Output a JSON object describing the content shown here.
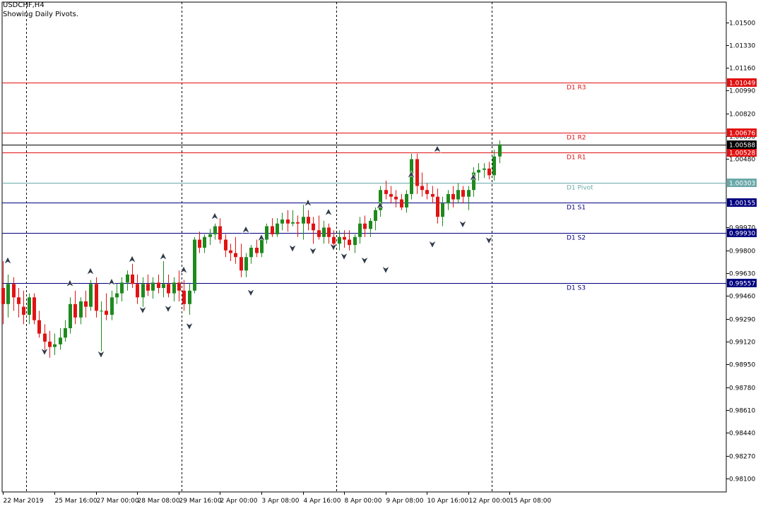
{
  "header": {
    "symbol_timeframe": "USDCHF,H4",
    "indicator_label": "Showing Daily Pivots."
  },
  "colors": {
    "bull": "#1e8a1e",
    "bear": "#e01414",
    "grid": "#000000",
    "axis": "#000000",
    "arrow_fill": "#2f3a4a",
    "resistance": "#e01010",
    "pivot": "#6aa8a8",
    "support": "#00007f",
    "current_price_bg": "#000000"
  },
  "chart_data": {
    "type": "candlestick",
    "symbol": "USDCHF",
    "timeframe": "H4",
    "y_range": [
      0.98,
      1.0165
    ],
    "y_ticks": [
      "1.01500",
      "1.01330",
      "1.01160",
      "1.00990",
      "1.00820",
      "1.00650",
      "1.00480",
      "0.99970",
      "0.99800",
      "0.99630",
      "0.99460",
      "0.99290",
      "0.99120",
      "0.98950",
      "0.98780",
      "0.98610",
      "0.98440",
      "0.98270",
      "0.98100"
    ],
    "x_ticks": [
      {
        "label": "22 Mar 2019",
        "index": 0
      },
      {
        "label": "25 Mar 16:00",
        "index": 10
      },
      {
        "label": "27 Mar 00:00",
        "index": 18
      },
      {
        "label": "28 Mar 08:00",
        "index": 26
      },
      {
        "label": "29 Mar 16:00",
        "index": 34
      },
      {
        "label": "2 Apr 00:00",
        "index": 42
      },
      {
        "label": "3 Apr 08:00",
        "index": 50
      },
      {
        "label": "4 Apr 16:00",
        "index": 58
      },
      {
        "label": "8 Apr 00:00",
        "index": 66
      },
      {
        "label": "9 Apr 08:00",
        "index": 74
      },
      {
        "label": "10 Apr 16:00",
        "index": 82
      },
      {
        "label": "12 Apr 00:00",
        "index": 90
      },
      {
        "label": "15 Apr 08:00",
        "index": 98
      }
    ],
    "day_separators_index": [
      4.5,
      34.5,
      64.5,
      94.5
    ],
    "pivot_levels": [
      {
        "name": "D1 R3",
        "value": 1.01049,
        "price_label": "1.01049",
        "role": "resistance"
      },
      {
        "name": "D1 R2",
        "value": 1.00676,
        "price_label": "1.00676",
        "role": "resistance"
      },
      {
        "name": "D1 R1",
        "value": 1.00528,
        "price_label": "1.00528",
        "role": "resistance"
      },
      {
        "name": "D1 Pivot",
        "value": 1.00303,
        "price_label": "1.00303",
        "role": "pivot"
      },
      {
        "name": "D1 S1",
        "value": 1.00155,
        "price_label": "1.00155",
        "role": "support"
      },
      {
        "name": "D1 S2",
        "value": 0.9993,
        "price_label": "0.99930",
        "role": "support"
      },
      {
        "name": "D1 S3",
        "value": 0.99557,
        "price_label": "0.99557",
        "role": "support"
      }
    ],
    "current_price": {
      "value": 1.00588,
      "label": "1.00588"
    },
    "candles": [
      [
        0.9952,
        0.9972,
        0.9925,
        0.994
      ],
      [
        0.994,
        0.9962,
        0.993,
        0.9955
      ],
      [
        0.9955,
        0.996,
        0.9935,
        0.9945
      ],
      [
        0.9945,
        0.9952,
        0.993,
        0.994
      ],
      [
        0.9938,
        0.995,
        0.9925,
        0.9932
      ],
      [
        0.9932,
        0.9948,
        0.9925,
        0.9945
      ],
      [
        0.9945,
        0.9948,
        0.9925,
        0.9928
      ],
      [
        0.9928,
        0.9935,
        0.9915,
        0.9918
      ],
      [
        0.9918,
        0.9925,
        0.9905,
        0.9912
      ],
      [
        0.9912,
        0.992,
        0.99,
        0.9908
      ],
      [
        0.9908,
        0.9918,
        0.9902,
        0.991
      ],
      [
        0.991,
        0.9922,
        0.9906,
        0.9915
      ],
      [
        0.9915,
        0.9928,
        0.9912,
        0.9922
      ],
      [
        0.9922,
        0.9945,
        0.9918,
        0.994
      ],
      [
        0.994,
        0.995,
        0.9925,
        0.993
      ],
      [
        0.993,
        0.9945,
        0.9925,
        0.9942
      ],
      [
        0.9942,
        0.995,
        0.993,
        0.9938
      ],
      [
        0.9938,
        0.9958,
        0.9935,
        0.9955
      ],
      [
        0.9955,
        0.996,
        0.993,
        0.9935
      ],
      [
        0.9935,
        0.9942,
        0.9905,
        0.9935
      ],
      [
        0.9935,
        0.9948,
        0.9928,
        0.9932
      ],
      [
        0.9932,
        0.995,
        0.9928,
        0.9945
      ],
      [
        0.9945,
        0.9955,
        0.994,
        0.9948
      ],
      [
        0.9948,
        0.996,
        0.9942,
        0.9956
      ],
      [
        0.9956,
        0.9965,
        0.995,
        0.9962
      ],
      [
        0.9962,
        0.997,
        0.9952,
        0.9955
      ],
      [
        0.9955,
        0.9962,
        0.994,
        0.9945
      ],
      [
        0.9945,
        0.996,
        0.9938,
        0.9955
      ],
      [
        0.9955,
        0.9962,
        0.9946,
        0.995
      ],
      [
        0.995,
        0.996,
        0.9944,
        0.9956
      ],
      [
        0.9956,
        0.9962,
        0.9948,
        0.9952
      ],
      [
        0.9952,
        0.9972,
        0.9945,
        0.9955
      ],
      [
        0.9955,
        0.9962,
        0.9945,
        0.9948
      ],
      [
        0.9948,
        0.996,
        0.9942,
        0.9956
      ],
      [
        0.9956,
        0.9965,
        0.9942,
        0.995
      ],
      [
        0.995,
        0.9958,
        0.9935,
        0.994
      ],
      [
        0.994,
        0.9955,
        0.9932,
        0.995
      ],
      [
        0.995,
        0.999,
        0.9948,
        0.9988
      ],
      [
        0.9988,
        0.9994,
        0.9978,
        0.9982
      ],
      [
        0.9982,
        0.9992,
        0.9978,
        0.999
      ],
      [
        0.999,
        0.9996,
        0.9984,
        0.9992
      ],
      [
        0.9992,
        1.0,
        0.9988,
        0.9998
      ],
      [
        0.9998,
        1.0004,
        0.9985,
        0.9988
      ],
      [
        0.9988,
        0.9992,
        0.9975,
        0.998
      ],
      [
        0.998,
        0.9985,
        0.9972,
        0.9978
      ],
      [
        0.9978,
        0.999,
        0.997,
        0.9975
      ],
      [
        0.9975,
        0.9985,
        0.996,
        0.9965
      ],
      [
        0.9965,
        0.9978,
        0.996,
        0.9975
      ],
      [
        0.9975,
        0.9984,
        0.997,
        0.9982
      ],
      [
        0.9982,
        0.9988,
        0.9975,
        0.9978
      ],
      [
        0.9978,
        0.999,
        0.9975,
        0.9988
      ],
      [
        0.9988,
        1.0,
        0.9985,
        0.9998
      ],
      [
        0.9998,
        1.0004,
        0.999,
        0.9992
      ],
      [
        0.9992,
        1.0004,
        0.999,
        1.0
      ],
      [
        1.0,
        1.0008,
        0.9995,
        1.0003
      ],
      [
        1.0003,
        1.001,
        0.9994,
        1.0
      ],
      [
        1.0,
        1.001,
        0.9998,
        1.0001
      ],
      [
        1.0001,
        1.0006,
        0.999,
        1.0
      ],
      [
        1.0,
        1.0014,
        0.9988,
        1.0005
      ],
      [
        1.0005,
        1.001,
        0.9995,
        1.0
      ],
      [
        1.0,
        1.0005,
        0.9985,
        0.9995
      ],
      [
        0.9995,
        1.0006,
        0.9988,
        0.999
      ],
      [
        0.999,
        1.0002,
        0.9985,
        0.9997
      ],
      [
        0.9997,
        1.0,
        0.9985,
        0.999
      ],
      [
        0.999,
        0.9995,
        0.998,
        0.9985
      ],
      [
        0.9985,
        0.9995,
        0.998,
        0.999
      ],
      [
        0.999,
        0.9995,
        0.9982,
        0.9988
      ],
      [
        0.9988,
        0.9995,
        0.998,
        0.9984
      ],
      [
        0.9984,
        0.9992,
        0.9978,
        0.999
      ],
      [
        0.999,
        1.0005,
        0.9985,
        1.0
      ],
      [
        1.0,
        1.0006,
        0.999,
        0.9996
      ],
      [
        0.9996,
        1.0004,
        0.999,
        1.0002
      ],
      [
        1.0002,
        1.0012,
        0.9995,
        1.001
      ],
      [
        1.001,
        1.0028,
        1.0005,
        1.0025
      ],
      [
        1.0025,
        1.0032,
        1.0018,
        1.0022
      ],
      [
        1.0022,
        1.0028,
        1.0015,
        1.002
      ],
      [
        1.002,
        1.0025,
        1.0012,
        1.0018
      ],
      [
        1.0018,
        1.0022,
        1.001,
        1.0012
      ],
      [
        1.0012,
        1.0025,
        1.0008,
        1.0022
      ],
      [
        1.0022,
        1.0052,
        1.0018,
        1.0048
      ],
      [
        1.0048,
        1.0052,
        1.0022,
        1.0028
      ],
      [
        1.0028,
        1.0038,
        1.002,
        1.0025
      ],
      [
        1.0025,
        1.003,
        1.0018,
        1.0022
      ],
      [
        1.0022,
        1.0028,
        1.0015,
        1.002
      ],
      [
        1.002,
        1.0026,
        1.0,
        1.0005
      ],
      [
        1.0005,
        1.002,
        0.9998,
        1.0015
      ],
      [
        1.0015,
        1.0025,
        1.001,
        1.0022
      ],
      [
        1.0022,
        1.0028,
        1.0012,
        1.0018
      ],
      [
        1.0018,
        1.003,
        1.0015,
        1.0025
      ],
      [
        1.0025,
        1.0028,
        1.0015,
        1.002
      ],
      [
        1.002,
        1.0028,
        1.001,
        1.0025
      ],
      [
        1.0025,
        1.0042,
        1.002,
        1.0038
      ],
      [
        1.0038,
        1.0045,
        1.0032,
        1.004
      ],
      [
        1.004,
        1.0045,
        1.0034,
        1.0041
      ],
      [
        1.0041,
        1.0046,
        1.0033,
        1.0036
      ],
      [
        1.0036,
        1.0055,
        1.0032,
        1.005
      ],
      [
        1.005,
        1.0062,
        1.0045,
        1.0059
      ]
    ],
    "arrows": [
      {
        "i": 1,
        "dir": "up",
        "price": 0.9972
      },
      {
        "i": 8,
        "dir": "down",
        "price": 0.9905
      },
      {
        "i": 13,
        "dir": "up",
        "price": 0.9955
      },
      {
        "i": 17,
        "dir": "up",
        "price": 0.9964
      },
      {
        "i": 19,
        "dir": "down",
        "price": 0.9903
      },
      {
        "i": 21,
        "dir": "up",
        "price": 0.9956
      },
      {
        "i": 25,
        "dir": "up",
        "price": 0.9973
      },
      {
        "i": 27,
        "dir": "down",
        "price": 0.9936
      },
      {
        "i": 31,
        "dir": "up",
        "price": 0.9975
      },
      {
        "i": 32,
        "dir": "down",
        "price": 0.9937
      },
      {
        "i": 35,
        "dir": "up",
        "price": 0.9965
      },
      {
        "i": 36,
        "dir": "down",
        "price": 0.9924
      },
      {
        "i": 41,
        "dir": "up",
        "price": 1.0005
      },
      {
        "i": 47,
        "dir": "up",
        "price": 0.9995
      },
      {
        "i": 48,
        "dir": "down",
        "price": 0.9949
      },
      {
        "i": 50,
        "dir": "up",
        "price": 0.9989
      },
      {
        "i": 56,
        "dir": "down",
        "price": 0.9982
      },
      {
        "i": 59,
        "dir": "up",
        "price": 1.0015
      },
      {
        "i": 60,
        "dir": "down",
        "price": 0.998
      },
      {
        "i": 63,
        "dir": "up",
        "price": 1.0008
      },
      {
        "i": 64,
        "dir": "down",
        "price": 0.9983
      },
      {
        "i": 66,
        "dir": "down",
        "price": 0.9976
      },
      {
        "i": 70,
        "dir": "down",
        "price": 0.9973
      },
      {
        "i": 73,
        "dir": "up",
        "price": 1.0013
      },
      {
        "i": 74,
        "dir": "down",
        "price": 0.9966
      },
      {
        "i": 79,
        "dir": "up",
        "price": 1.0036
      },
      {
        "i": 83,
        "dir": "down",
        "price": 0.9985
      },
      {
        "i": 84,
        "dir": "up",
        "price": 1.0055
      },
      {
        "i": 89,
        "dir": "down",
        "price": 1.0
      },
      {
        "i": 91,
        "dir": "up",
        "price": 1.0034
      },
      {
        "i": 94,
        "dir": "down",
        "price": 0.9988
      }
    ]
  }
}
